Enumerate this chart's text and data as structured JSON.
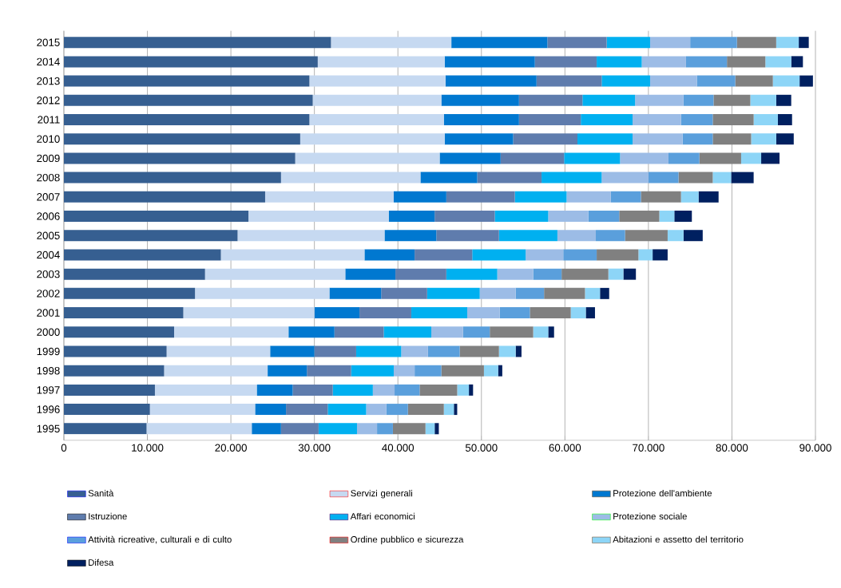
{
  "chart_data": {
    "type": "bar",
    "orientation": "horizontal",
    "stacked": true,
    "categories": [
      "2015",
      "2014",
      "2013",
      "2012",
      "2011",
      "2010",
      "2009",
      "2008",
      "2007",
      "2006",
      "2005",
      "2004",
      "2003",
      "2002",
      "2001",
      "2000",
      "1999",
      "1998",
      "1997",
      "1996",
      "1995"
    ],
    "series": [
      {
        "name": "Sanità",
        "color": "#365f91",
        "values": [
          32000,
          30400,
          29400,
          29800,
          29400,
          28300,
          27700,
          26000,
          24100,
          22100,
          20800,
          18800,
          16900,
          15700,
          14300,
          13200,
          12300,
          12000,
          10900,
          10300,
          9900
        ]
      },
      {
        "name": "Servizi generali",
        "color": "#c6d9f1",
        "values": [
          14400,
          15200,
          16300,
          15400,
          16100,
          17300,
          17300,
          16700,
          15400,
          16800,
          17600,
          17200,
          16800,
          16100,
          15700,
          13700,
          12400,
          12400,
          12200,
          12600,
          12600
        ]
      },
      {
        "name": "Protezione dell'ambiente",
        "color": "#0078d0",
        "values": [
          11500,
          10800,
          10900,
          9300,
          9000,
          8200,
          7300,
          6800,
          6300,
          5500,
          6200,
          6000,
          6000,
          6200,
          5400,
          5500,
          5300,
          4700,
          4300,
          3700,
          3500
        ]
      },
      {
        "name": "Istruzione",
        "color": "#5f7cad",
        "values": [
          7100,
          7400,
          7800,
          7600,
          7400,
          7700,
          7600,
          7700,
          8200,
          7200,
          7500,
          6900,
          6100,
          5500,
          6200,
          5900,
          5000,
          5300,
          4800,
          5000,
          4500
        ]
      },
      {
        "name": "Affari economici",
        "color": "#00b0f0",
        "values": [
          5200,
          5400,
          5800,
          6300,
          6200,
          6600,
          6700,
          7200,
          6200,
          6400,
          7000,
          6400,
          6100,
          6300,
          6700,
          5700,
          5400,
          5100,
          4800,
          4600,
          4600
        ]
      },
      {
        "name": "Protezione sociale",
        "color": "#9cbce6",
        "values": [
          4800,
          5300,
          5600,
          5800,
          5800,
          6000,
          5800,
          5600,
          5300,
          4800,
          4600,
          4500,
          4300,
          4300,
          3900,
          3800,
          3200,
          2500,
          2600,
          2400,
          2400
        ]
      },
      {
        "name": "Attività ricreative, culturali e di culto",
        "color": "#5a9fdc",
        "values": [
          5600,
          4900,
          4600,
          3600,
          3800,
          3600,
          3700,
          3600,
          3600,
          3700,
          3500,
          4000,
          3400,
          3400,
          3600,
          3200,
          3800,
          3200,
          3000,
          2600,
          1900
        ]
      },
      {
        "name": "Ordine pubblico e sicurezza",
        "color": "#808080",
        "values": [
          4700,
          4600,
          4500,
          4400,
          4900,
          4600,
          5000,
          4100,
          4800,
          4800,
          5100,
          5000,
          5600,
          4900,
          4900,
          5200,
          4700,
          5100,
          4500,
          4300,
          3900
        ]
      },
      {
        "name": "Abitazioni e assetto del territorio",
        "color": "#8dd5f7",
        "values": [
          2700,
          3100,
          3200,
          3100,
          2900,
          3000,
          2400,
          2200,
          2100,
          1800,
          1900,
          1700,
          1800,
          1800,
          1800,
          1800,
          2000,
          1700,
          1400,
          1200,
          1100
        ]
      },
      {
        "name": "Difesa",
        "color": "#002060",
        "values": [
          1200,
          1400,
          1600,
          1800,
          1700,
          2100,
          2200,
          2700,
          2400,
          2100,
          2300,
          1800,
          1500,
          1100,
          1100,
          700,
          700,
          500,
          500,
          400,
          500
        ]
      }
    ],
    "xlim": [
      0,
      90000
    ],
    "xticks": [
      0,
      {
        "value": 10000,
        "label": "10.000"
      },
      {
        "value": 20000,
        "label": "20.000"
      },
      {
        "value": 30000,
        "label": "30.000"
      },
      {
        "value": 40000,
        "label": "40.000"
      },
      {
        "value": 50000,
        "label": "50.000"
      },
      {
        "value": 60000,
        "label": "60.000"
      },
      {
        "value": 70000,
        "label": "70.000"
      },
      {
        "value": 80000,
        "label": "80.000"
      },
      {
        "value": 90000,
        "label": "90.000"
      }
    ],
    "grid": "x",
    "legend": "bottom"
  }
}
